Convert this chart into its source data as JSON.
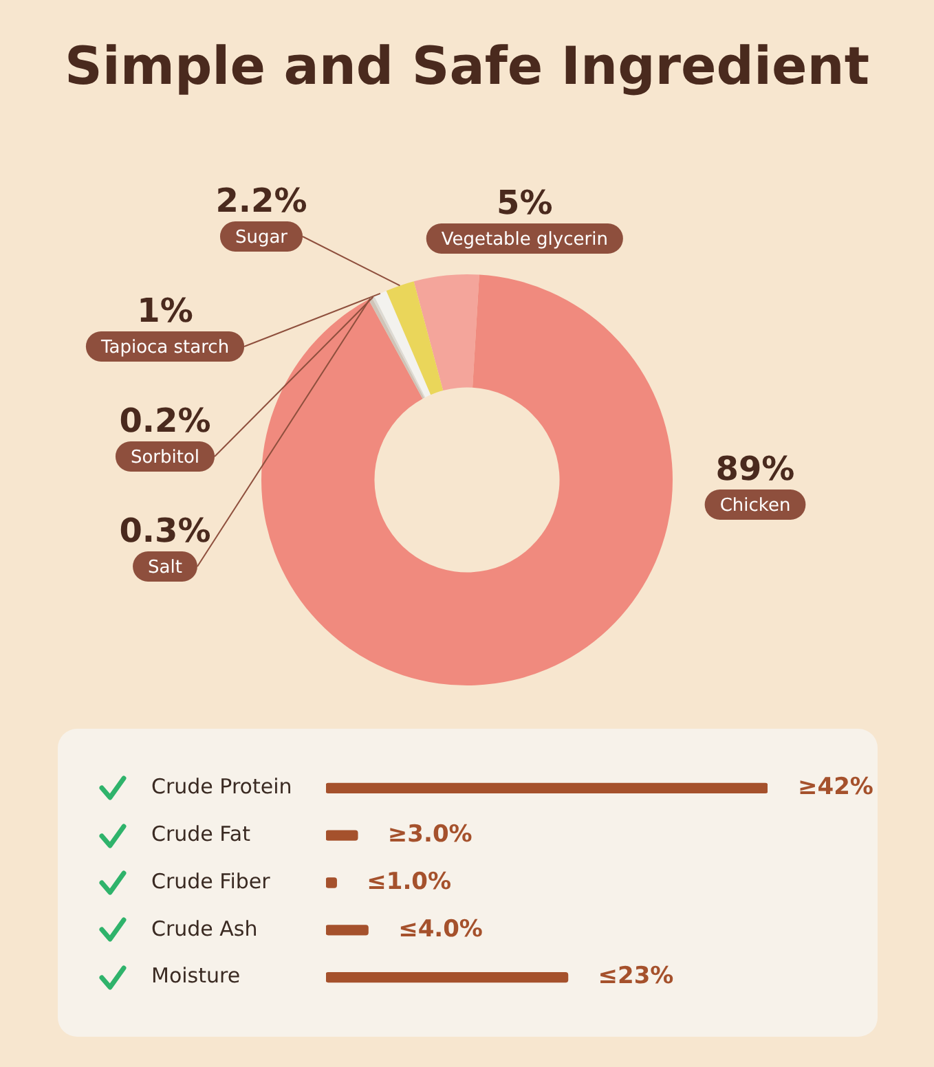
{
  "chart_data": [
    {
      "type": "donut",
      "title": "Simple and Safe Ingredient",
      "categories": [
        "Vegetable glycerin",
        "Chicken",
        "Salt",
        "Sorbitol",
        "Tapioca starch",
        "Sugar"
      ],
      "values": [
        5,
        89,
        0.3,
        0.2,
        1,
        2.2
      ],
      "value_labels": [
        "5%",
        "89%",
        "0.3%",
        "0.2%",
        "1%",
        "2.2%"
      ],
      "colors": [
        "#f4a59b",
        "#f08a7e",
        "#cfc4b8",
        "#dcdad4",
        "#f3f2ee",
        "#ead65a"
      ],
      "legend": false
    },
    {
      "type": "bar",
      "orientation": "horizontal",
      "categories": [
        "Crude Protein",
        "Crude Fat",
        "Crude Fiber",
        "Crude Ash",
        "Moisture"
      ],
      "values": [
        42,
        3.0,
        1.0,
        4.0,
        23
      ],
      "value_labels": [
        "≥42%",
        "≥3.0%",
        "≤1.0%",
        "≤4.0%",
        "≤23%"
      ],
      "color": "#a5512c",
      "xlim": [
        0,
        42
      ],
      "tick_labels": "y",
      "legend": false
    }
  ]
}
